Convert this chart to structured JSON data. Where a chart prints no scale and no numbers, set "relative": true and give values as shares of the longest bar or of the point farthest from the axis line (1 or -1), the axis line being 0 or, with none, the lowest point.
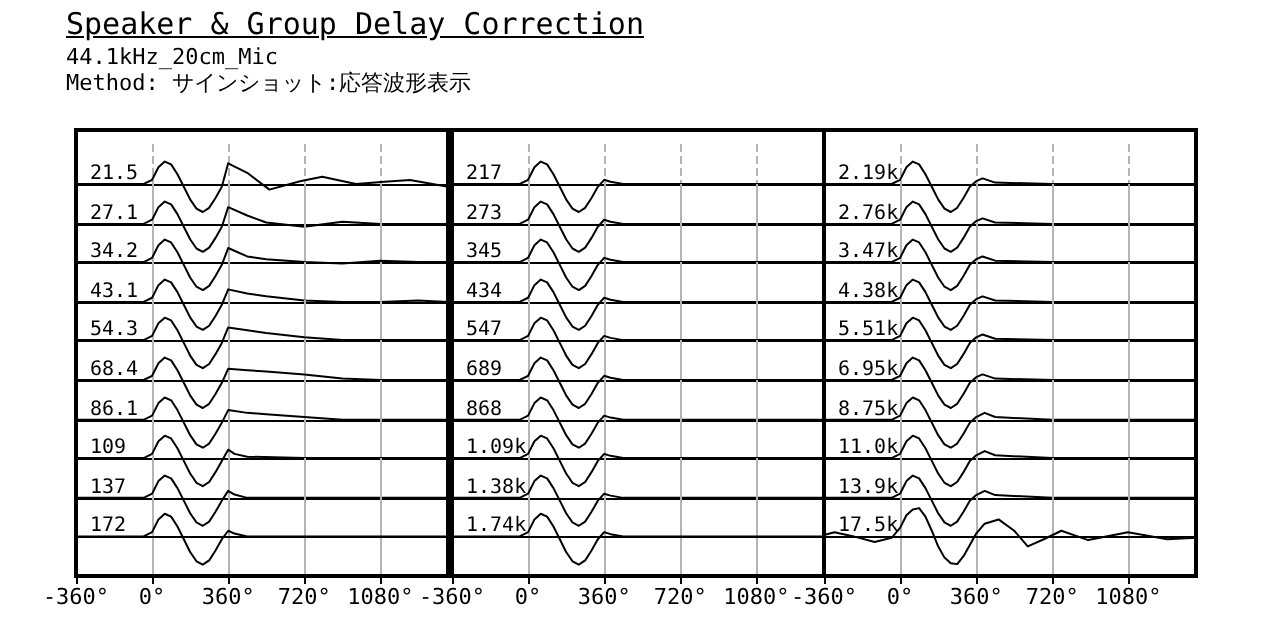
{
  "chart_data": [
    {
      "type": "other",
      "title": "Speaker & Group Delay Correction",
      "subtitle": "44.1kHz_20cm_Mic",
      "annotations": [
        "Method: サインショット:応答波形表示"
      ]
    },
    {
      "type": "line",
      "title": "21.5",
      "x": [
        -360,
        -40,
        0,
        30,
        60,
        90,
        120,
        150,
        180,
        210,
        240,
        270,
        300,
        330,
        360,
        450,
        555,
        700,
        805,
        965,
        1100,
        1220,
        1400
      ],
      "values": [
        0,
        0,
        0.15,
        0.6,
        0.8,
        0.7,
        0.35,
        -0.1,
        -0.55,
        -0.88,
        -1,
        -0.85,
        -0.5,
        -0.1,
        0.74,
        0.4,
        -0.2,
        0.1,
        0.26,
        0,
        0.08,
        0.14,
        -0.1
      ],
      "relative": true,
      "xlim": [
        -360,
        1400
      ],
      "xticks": [
        {
          "value": -360,
          "label": null
        },
        {
          "value": 0,
          "label": null
        },
        {
          "value": 360,
          "label": null
        },
        {
          "value": 720,
          "label": null
        },
        {
          "value": 1080,
          "label": null
        }
      ],
      "grid": "x",
      "tick_labels": false,
      "color": "#000000"
    },
    {
      "type": "line",
      "title": "27.1",
      "x": [
        -360,
        -40,
        0,
        30,
        60,
        90,
        120,
        150,
        180,
        210,
        240,
        270,
        300,
        330,
        360,
        450,
        540,
        720,
        900,
        1080,
        1260,
        1400
      ],
      "values": [
        0,
        0,
        0.15,
        0.6,
        0.8,
        0.7,
        0.35,
        -0.1,
        -0.55,
        -0.88,
        -1,
        -0.85,
        -0.5,
        -0.1,
        0.6,
        0.3,
        0.05,
        -0.1,
        0.08,
        0,
        0,
        0
      ],
      "relative": true,
      "xlim": [
        -360,
        1400
      ],
      "xticks": [
        {
          "value": -360,
          "label": null
        },
        {
          "value": 0,
          "label": null
        },
        {
          "value": 360,
          "label": null
        },
        {
          "value": 720,
          "label": null
        },
        {
          "value": 1080,
          "label": null
        }
      ],
      "grid": "x",
      "tick_labels": false,
      "color": "#000000"
    },
    {
      "type": "line",
      "title": "34.2",
      "x": [
        -360,
        -40,
        0,
        30,
        60,
        90,
        120,
        150,
        180,
        210,
        240,
        270,
        300,
        330,
        360,
        450,
        540,
        720,
        900,
        1080,
        1260,
        1400
      ],
      "values": [
        0,
        0,
        0.15,
        0.6,
        0.8,
        0.7,
        0.35,
        -0.1,
        -0.55,
        -0.88,
        -1,
        -0.85,
        -0.5,
        -0.1,
        0.5,
        0.2,
        0.1,
        0,
        -0.05,
        0.05,
        0,
        0
      ],
      "relative": true,
      "xlim": [
        -360,
        1400
      ],
      "xticks": [
        {
          "value": -360,
          "label": null
        },
        {
          "value": 0,
          "label": null
        },
        {
          "value": 360,
          "label": null
        },
        {
          "value": 720,
          "label": null
        },
        {
          "value": 1080,
          "label": null
        }
      ],
      "grid": "x",
      "tick_labels": false,
      "color": "#000000"
    },
    {
      "type": "line",
      "title": "43.1",
      "x": [
        -360,
        -40,
        0,
        30,
        60,
        90,
        120,
        150,
        180,
        210,
        240,
        270,
        300,
        330,
        360,
        450,
        540,
        720,
        900,
        1080,
        1260,
        1400
      ],
      "values": [
        0,
        0,
        0.15,
        0.6,
        0.8,
        0.7,
        0.35,
        -0.1,
        -0.55,
        -0.88,
        -1,
        -0.85,
        -0.5,
        -0.1,
        0.45,
        0.3,
        0.2,
        0.05,
        0,
        0,
        0.05,
        0
      ],
      "relative": true,
      "xlim": [
        -360,
        1400
      ],
      "xticks": [
        {
          "value": -360,
          "label": null
        },
        {
          "value": 0,
          "label": null
        },
        {
          "value": 360,
          "label": null
        },
        {
          "value": 720,
          "label": null
        },
        {
          "value": 1080,
          "label": null
        }
      ],
      "grid": "x",
      "tick_labels": false,
      "color": "#000000"
    },
    {
      "type": "line",
      "title": "54.3",
      "x": [
        -360,
        -40,
        0,
        30,
        60,
        90,
        120,
        150,
        180,
        210,
        240,
        270,
        300,
        330,
        360,
        450,
        540,
        720,
        900,
        1080,
        1260,
        1400
      ],
      "values": [
        0,
        0,
        0.15,
        0.6,
        0.8,
        0.7,
        0.35,
        -0.1,
        -0.55,
        -0.88,
        -1,
        -0.85,
        -0.5,
        -0.1,
        0.45,
        0.35,
        0.25,
        0.1,
        0,
        0,
        0,
        0
      ],
      "relative": true,
      "xlim": [
        -360,
        1400
      ],
      "xticks": [
        {
          "value": -360,
          "label": null
        },
        {
          "value": 0,
          "label": null
        },
        {
          "value": 360,
          "label": null
        },
        {
          "value": 720,
          "label": null
        },
        {
          "value": 1080,
          "label": null
        }
      ],
      "grid": "x",
      "tick_labels": false,
      "color": "#000000"
    },
    {
      "type": "line",
      "title": "68.4",
      "x": [
        -360,
        -40,
        0,
        30,
        60,
        90,
        120,
        150,
        180,
        210,
        240,
        270,
        300,
        330,
        360,
        450,
        540,
        720,
        900,
        1080,
        1260,
        1400
      ],
      "values": [
        0,
        0,
        0.15,
        0.6,
        0.8,
        0.7,
        0.35,
        -0.1,
        -0.55,
        -0.88,
        -1,
        -0.85,
        -0.5,
        -0.1,
        0.4,
        0.35,
        0.3,
        0.2,
        0.05,
        0,
        0,
        0
      ],
      "relative": true,
      "xlim": [
        -360,
        1400
      ],
      "xticks": [
        {
          "value": -360,
          "label": null
        },
        {
          "value": 0,
          "label": null
        },
        {
          "value": 360,
          "label": null
        },
        {
          "value": 720,
          "label": null
        },
        {
          "value": 1080,
          "label": null
        }
      ],
      "grid": "x",
      "tick_labels": false,
      "color": "#000000"
    },
    {
      "type": "line",
      "title": "86.1",
      "x": [
        -360,
        -40,
        0,
        30,
        60,
        90,
        120,
        150,
        180,
        210,
        240,
        270,
        300,
        330,
        360,
        450,
        540,
        720,
        900,
        1080,
        1260,
        1400
      ],
      "values": [
        0,
        0,
        0.15,
        0.6,
        0.8,
        0.7,
        0.35,
        -0.1,
        -0.55,
        -0.88,
        -1,
        -0.85,
        -0.5,
        -0.1,
        0.35,
        0.25,
        0.2,
        0.1,
        0,
        0,
        0,
        0
      ],
      "relative": true,
      "xlim": [
        -360,
        1400
      ],
      "xticks": [
        {
          "value": -360,
          "label": null
        },
        {
          "value": 0,
          "label": null
        },
        {
          "value": 360,
          "label": null
        },
        {
          "value": 720,
          "label": null
        },
        {
          "value": 1080,
          "label": null
        }
      ],
      "grid": "x",
      "tick_labels": false,
      "color": "#000000"
    },
    {
      "type": "line",
      "title": "109",
      "x": [
        -360,
        -40,
        0,
        30,
        60,
        90,
        120,
        150,
        180,
        210,
        240,
        270,
        300,
        330,
        360,
        390,
        450,
        720,
        1080,
        1400
      ],
      "values": [
        0,
        0,
        0.15,
        0.6,
        0.8,
        0.7,
        0.35,
        -0.1,
        -0.55,
        -0.88,
        -1,
        -0.85,
        -0.5,
        -0.1,
        0.3,
        0.15,
        0.05,
        0,
        0,
        0
      ],
      "relative": true,
      "xlim": [
        -360,
        1400
      ],
      "xticks": [
        {
          "value": -360,
          "label": null
        },
        {
          "value": 0,
          "label": null
        },
        {
          "value": 360,
          "label": null
        },
        {
          "value": 720,
          "label": null
        },
        {
          "value": 1080,
          "label": null
        }
      ],
      "grid": "x",
      "tick_labels": false,
      "color": "#000000"
    },
    {
      "type": "line",
      "title": "137",
      "x": [
        -360,
        -40,
        0,
        30,
        60,
        90,
        120,
        150,
        180,
        210,
        240,
        270,
        300,
        330,
        360,
        390,
        450,
        720,
        1080,
        1400
      ],
      "values": [
        0,
        0,
        0.15,
        0.6,
        0.8,
        0.7,
        0.35,
        -0.1,
        -0.55,
        -0.88,
        -1,
        -0.85,
        -0.5,
        -0.1,
        0.25,
        0.12,
        0,
        0,
        0,
        0
      ],
      "relative": true,
      "xlim": [
        -360,
        1400
      ],
      "xticks": [
        {
          "value": -360,
          "label": null
        },
        {
          "value": 0,
          "label": null
        },
        {
          "value": 360,
          "label": null
        },
        {
          "value": 720,
          "label": null
        },
        {
          "value": 1080,
          "label": null
        }
      ],
      "grid": "x",
      "tick_labels": false,
      "color": "#000000"
    },
    {
      "type": "line",
      "title": "172",
      "x": [
        -360,
        -40,
        0,
        30,
        60,
        90,
        120,
        150,
        180,
        210,
        240,
        270,
        300,
        330,
        360,
        390,
        450,
        720,
        1080,
        1400
      ],
      "values": [
        0,
        0,
        0.15,
        0.6,
        0.8,
        0.7,
        0.35,
        -0.1,
        -0.55,
        -0.88,
        -1,
        -0.85,
        -0.5,
        -0.1,
        0.2,
        0.1,
        0,
        0,
        0,
        0
      ],
      "relative": true,
      "xlim": [
        -360,
        1400
      ],
      "xticks": [
        {
          "value": -360,
          "label": "-360°"
        },
        {
          "value": 0,
          "label": "0°"
        },
        {
          "value": 360,
          "label": "360°"
        },
        {
          "value": 720,
          "label": "720°"
        },
        {
          "value": 1080,
          "label": "1080°"
        }
      ],
      "grid": "x",
      "tick_labels": "x",
      "color": "#000000"
    },
    {
      "type": "line",
      "title": "217",
      "x": [
        -360,
        -40,
        0,
        30,
        60,
        90,
        120,
        150,
        180,
        210,
        240,
        270,
        300,
        330,
        360,
        390,
        450,
        720,
        1080,
        1400
      ],
      "values": [
        0,
        0,
        0.15,
        0.6,
        0.8,
        0.7,
        0.35,
        -0.1,
        -0.55,
        -0.88,
        -1,
        -0.85,
        -0.5,
        -0.1,
        0.15,
        0.08,
        0,
        0,
        0,
        0
      ],
      "relative": true,
      "xlim": [
        -360,
        1400
      ],
      "xticks": [
        {
          "value": -360,
          "label": null
        },
        {
          "value": 0,
          "label": null
        },
        {
          "value": 360,
          "label": null
        },
        {
          "value": 720,
          "label": null
        },
        {
          "value": 1080,
          "label": null
        }
      ],
      "grid": "x",
      "tick_labels": false,
      "color": "#000000"
    },
    {
      "type": "line",
      "title": "273",
      "x": [
        -360,
        -40,
        0,
        30,
        60,
        90,
        120,
        150,
        180,
        210,
        240,
        270,
        300,
        330,
        360,
        390,
        450,
        720,
        1080,
        1400
      ],
      "values": [
        0,
        0,
        0.15,
        0.6,
        0.8,
        0.7,
        0.35,
        -0.1,
        -0.55,
        -0.88,
        -1,
        -0.85,
        -0.5,
        -0.1,
        0.15,
        0.08,
        0,
        0,
        0,
        0
      ],
      "relative": true,
      "xlim": [
        -360,
        1400
      ],
      "xticks": [
        {
          "value": -360,
          "label": null
        },
        {
          "value": 0,
          "label": null
        },
        {
          "value": 360,
          "label": null
        },
        {
          "value": 720,
          "label": null
        },
        {
          "value": 1080,
          "label": null
        }
      ],
      "grid": "x",
      "tick_labels": false,
      "color": "#000000"
    },
    {
      "type": "line",
      "title": "345",
      "x": [
        -360,
        -40,
        0,
        30,
        60,
        90,
        120,
        150,
        180,
        210,
        240,
        270,
        300,
        330,
        360,
        390,
        450,
        720,
        1080,
        1400
      ],
      "values": [
        0,
        0,
        0.15,
        0.6,
        0.8,
        0.7,
        0.35,
        -0.1,
        -0.55,
        -0.88,
        -1,
        -0.85,
        -0.5,
        -0.1,
        0.15,
        0.08,
        0,
        0,
        0,
        0
      ],
      "relative": true,
      "xlim": [
        -360,
        1400
      ],
      "xticks": [
        {
          "value": -360,
          "label": null
        },
        {
          "value": 0,
          "label": null
        },
        {
          "value": 360,
          "label": null
        },
        {
          "value": 720,
          "label": null
        },
        {
          "value": 1080,
          "label": null
        }
      ],
      "grid": "x",
      "tick_labels": false,
      "color": "#000000"
    },
    {
      "type": "line",
      "title": "434",
      "x": [
        -360,
        -40,
        0,
        30,
        60,
        90,
        120,
        150,
        180,
        210,
        240,
        270,
        300,
        330,
        360,
        390,
        450,
        720,
        1080,
        1400
      ],
      "values": [
        0,
        0,
        0.15,
        0.6,
        0.8,
        0.7,
        0.35,
        -0.1,
        -0.55,
        -0.88,
        -1,
        -0.85,
        -0.5,
        -0.1,
        0.15,
        0.08,
        0,
        0,
        0,
        0
      ],
      "relative": true,
      "xlim": [
        -360,
        1400
      ],
      "xticks": [
        {
          "value": -360,
          "label": null
        },
        {
          "value": 0,
          "label": null
        },
        {
          "value": 360,
          "label": null
        },
        {
          "value": 720,
          "label": null
        },
        {
          "value": 1080,
          "label": null
        }
      ],
      "grid": "x",
      "tick_labels": false,
      "color": "#000000"
    },
    {
      "type": "line",
      "title": "547",
      "x": [
        -360,
        -40,
        0,
        30,
        60,
        90,
        120,
        150,
        180,
        210,
        240,
        270,
        300,
        330,
        360,
        390,
        450,
        720,
        1080,
        1400
      ],
      "values": [
        0,
        0,
        0.15,
        0.6,
        0.8,
        0.7,
        0.35,
        -0.1,
        -0.55,
        -0.88,
        -1,
        -0.85,
        -0.5,
        -0.1,
        0.15,
        0.08,
        0,
        0,
        0,
        0
      ],
      "relative": true,
      "xlim": [
        -360,
        1400
      ],
      "xticks": [
        {
          "value": -360,
          "label": null
        },
        {
          "value": 0,
          "label": null
        },
        {
          "value": 360,
          "label": null
        },
        {
          "value": 720,
          "label": null
        },
        {
          "value": 1080,
          "label": null
        }
      ],
      "grid": "x",
      "tick_labels": false,
      "color": "#000000"
    },
    {
      "type": "line",
      "title": "689",
      "x": [
        -360,
        -40,
        0,
        30,
        60,
        90,
        120,
        150,
        180,
        210,
        240,
        270,
        300,
        330,
        360,
        390,
        450,
        720,
        1080,
        1400
      ],
      "values": [
        0,
        0,
        0.15,
        0.6,
        0.8,
        0.7,
        0.35,
        -0.1,
        -0.55,
        -0.88,
        -1,
        -0.85,
        -0.5,
        -0.1,
        0.15,
        0.08,
        0,
        0,
        0,
        0
      ],
      "relative": true,
      "xlim": [
        -360,
        1400
      ],
      "xticks": [
        {
          "value": -360,
          "label": null
        },
        {
          "value": 0,
          "label": null
        },
        {
          "value": 360,
          "label": null
        },
        {
          "value": 720,
          "label": null
        },
        {
          "value": 1080,
          "label": null
        }
      ],
      "grid": "x",
      "tick_labels": false,
      "color": "#000000"
    },
    {
      "type": "line",
      "title": "868",
      "x": [
        -360,
        -40,
        0,
        30,
        60,
        90,
        120,
        150,
        180,
        210,
        240,
        270,
        300,
        330,
        360,
        390,
        450,
        720,
        1080,
        1400
      ],
      "values": [
        0,
        0,
        0.15,
        0.6,
        0.8,
        0.7,
        0.35,
        -0.1,
        -0.55,
        -0.88,
        -1,
        -0.85,
        -0.5,
        -0.1,
        0.15,
        0.08,
        0,
        0,
        0,
        0
      ],
      "relative": true,
      "xlim": [
        -360,
        1400
      ],
      "xticks": [
        {
          "value": -360,
          "label": null
        },
        {
          "value": 0,
          "label": null
        },
        {
          "value": 360,
          "label": null
        },
        {
          "value": 720,
          "label": null
        },
        {
          "value": 1080,
          "label": null
        }
      ],
      "grid": "x",
      "tick_labels": false,
      "color": "#000000"
    },
    {
      "type": "line",
      "title": "1.09k",
      "x": [
        -360,
        -40,
        0,
        30,
        60,
        90,
        120,
        150,
        180,
        210,
        240,
        270,
        300,
        330,
        360,
        390,
        450,
        720,
        1080,
        1400
      ],
      "values": [
        0,
        0,
        0.15,
        0.6,
        0.8,
        0.7,
        0.35,
        -0.1,
        -0.55,
        -0.88,
        -1,
        -0.85,
        -0.5,
        -0.1,
        0.15,
        0.08,
        0,
        0,
        0,
        0
      ],
      "relative": true,
      "xlim": [
        -360,
        1400
      ],
      "xticks": [
        {
          "value": -360,
          "label": null
        },
        {
          "value": 0,
          "label": null
        },
        {
          "value": 360,
          "label": null
        },
        {
          "value": 720,
          "label": null
        },
        {
          "value": 1080,
          "label": null
        }
      ],
      "grid": "x",
      "tick_labels": false,
      "color": "#000000"
    },
    {
      "type": "line",
      "title": "1.38k",
      "x": [
        -360,
        -40,
        0,
        30,
        60,
        90,
        120,
        150,
        180,
        210,
        240,
        270,
        300,
        330,
        360,
        390,
        450,
        720,
        1080,
        1400
      ],
      "values": [
        0,
        0,
        0.15,
        0.6,
        0.8,
        0.7,
        0.35,
        -0.1,
        -0.55,
        -0.88,
        -1,
        -0.85,
        -0.5,
        -0.1,
        0.15,
        0.08,
        0,
        0,
        0,
        0
      ],
      "relative": true,
      "xlim": [
        -360,
        1400
      ],
      "xticks": [
        {
          "value": -360,
          "label": null
        },
        {
          "value": 0,
          "label": null
        },
        {
          "value": 360,
          "label": null
        },
        {
          "value": 720,
          "label": null
        },
        {
          "value": 1080,
          "label": null
        }
      ],
      "grid": "x",
      "tick_labels": false,
      "color": "#000000"
    },
    {
      "type": "line",
      "title": "1.74k",
      "x": [
        -360,
        -40,
        0,
        30,
        60,
        90,
        120,
        150,
        180,
        210,
        240,
        270,
        300,
        330,
        360,
        390,
        450,
        720,
        1080,
        1400
      ],
      "values": [
        0,
        0,
        0.15,
        0.6,
        0.8,
        0.7,
        0.35,
        -0.1,
        -0.55,
        -0.88,
        -1,
        -0.85,
        -0.5,
        -0.1,
        0.15,
        0.08,
        0,
        0,
        0,
        0
      ],
      "relative": true,
      "xlim": [
        -360,
        1400
      ],
      "xticks": [
        {
          "value": -360,
          "label": "-360°"
        },
        {
          "value": 0,
          "label": "0°"
        },
        {
          "value": 360,
          "label": "360°"
        },
        {
          "value": 720,
          "label": "720°"
        },
        {
          "value": 1080,
          "label": "1080°"
        }
      ],
      "grid": "x",
      "tick_labels": "x",
      "color": "#000000"
    },
    {
      "type": "line",
      "title": "2.19k",
      "x": [
        -360,
        -40,
        0,
        30,
        60,
        90,
        120,
        150,
        180,
        210,
        240,
        270,
        300,
        330,
        360,
        390,
        450,
        720,
        1080,
        1400
      ],
      "values": [
        0,
        0,
        0.15,
        0.6,
        0.8,
        0.7,
        0.35,
        -0.1,
        -0.55,
        -0.88,
        -1,
        -0.85,
        -0.5,
        -0.1,
        0.1,
        0.2,
        0.05,
        0,
        0,
        0
      ],
      "relative": true,
      "xlim": [
        -360,
        1400
      ],
      "xticks": [
        {
          "value": -360,
          "label": null
        },
        {
          "value": 0,
          "label": null
        },
        {
          "value": 360,
          "label": null
        },
        {
          "value": 720,
          "label": null
        },
        {
          "value": 1080,
          "label": null
        }
      ],
      "grid": "x",
      "tick_labels": false,
      "color": "#000000"
    },
    {
      "type": "line",
      "title": "2.76k",
      "x": [
        -360,
        -40,
        0,
        30,
        60,
        90,
        120,
        150,
        180,
        210,
        240,
        270,
        300,
        330,
        360,
        390,
        450,
        720,
        1080,
        1400
      ],
      "values": [
        0,
        0,
        0.15,
        0.6,
        0.8,
        0.7,
        0.35,
        -0.1,
        -0.55,
        -0.88,
        -1,
        -0.85,
        -0.5,
        -0.1,
        0.1,
        0.2,
        0.05,
        0,
        0,
        0
      ],
      "relative": true,
      "xlim": [
        -360,
        1400
      ],
      "xticks": [
        {
          "value": -360,
          "label": null
        },
        {
          "value": 0,
          "label": null
        },
        {
          "value": 360,
          "label": null
        },
        {
          "value": 720,
          "label": null
        },
        {
          "value": 1080,
          "label": null
        }
      ],
      "grid": "x",
      "tick_labels": false,
      "color": "#000000"
    },
    {
      "type": "line",
      "title": "3.47k",
      "x": [
        -360,
        -40,
        0,
        30,
        60,
        90,
        120,
        150,
        180,
        210,
        240,
        270,
        300,
        330,
        360,
        390,
        450,
        720,
        1080,
        1400
      ],
      "values": [
        0,
        0,
        0.15,
        0.6,
        0.8,
        0.7,
        0.35,
        -0.1,
        -0.55,
        -0.88,
        -1,
        -0.85,
        -0.5,
        -0.1,
        0.1,
        0.2,
        0.05,
        0,
        0,
        0
      ],
      "relative": true,
      "xlim": [
        -360,
        1400
      ],
      "xticks": [
        {
          "value": -360,
          "label": null
        },
        {
          "value": 0,
          "label": null
        },
        {
          "value": 360,
          "label": null
        },
        {
          "value": 720,
          "label": null
        },
        {
          "value": 1080,
          "label": null
        }
      ],
      "grid": "x",
      "tick_labels": false,
      "color": "#000000"
    },
    {
      "type": "line",
      "title": "4.38k",
      "x": [
        -360,
        -40,
        0,
        30,
        60,
        90,
        120,
        150,
        180,
        210,
        240,
        270,
        300,
        330,
        360,
        390,
        450,
        720,
        1080,
        1400
      ],
      "values": [
        0,
        0,
        0.15,
        0.6,
        0.8,
        0.7,
        0.35,
        -0.1,
        -0.55,
        -0.88,
        -1,
        -0.85,
        -0.5,
        -0.1,
        0.1,
        0.2,
        0.05,
        0,
        0,
        0
      ],
      "relative": true,
      "xlim": [
        -360,
        1400
      ],
      "xticks": [
        {
          "value": -360,
          "label": null
        },
        {
          "value": 0,
          "label": null
        },
        {
          "value": 360,
          "label": null
        },
        {
          "value": 720,
          "label": null
        },
        {
          "value": 1080,
          "label": null
        }
      ],
      "grid": "x",
      "tick_labels": false,
      "color": "#000000"
    },
    {
      "type": "line",
      "title": "5.51k",
      "x": [
        -360,
        -40,
        0,
        30,
        60,
        90,
        120,
        150,
        180,
        210,
        240,
        270,
        300,
        330,
        360,
        390,
        450,
        720,
        1080,
        1400
      ],
      "values": [
        0,
        0,
        0.15,
        0.6,
        0.8,
        0.7,
        0.35,
        -0.1,
        -0.55,
        -0.88,
        -1,
        -0.85,
        -0.5,
        -0.1,
        0.1,
        0.2,
        0.05,
        0,
        0,
        0
      ],
      "relative": true,
      "xlim": [
        -360,
        1400
      ],
      "xticks": [
        {
          "value": -360,
          "label": null
        },
        {
          "value": 0,
          "label": null
        },
        {
          "value": 360,
          "label": null
        },
        {
          "value": 720,
          "label": null
        },
        {
          "value": 1080,
          "label": null
        }
      ],
      "grid": "x",
      "tick_labels": false,
      "color": "#000000"
    },
    {
      "type": "line",
      "title": "6.95k",
      "x": [
        -360,
        -40,
        0,
        30,
        60,
        90,
        120,
        150,
        180,
        210,
        240,
        270,
        300,
        330,
        360,
        390,
        450,
        720,
        1080,
        1400
      ],
      "values": [
        0,
        0,
        0.15,
        0.6,
        0.8,
        0.7,
        0.35,
        -0.1,
        -0.55,
        -0.88,
        -1,
        -0.85,
        -0.5,
        -0.1,
        0.1,
        0.2,
        0.05,
        0,
        0,
        0
      ],
      "relative": true,
      "xlim": [
        -360,
        1400
      ],
      "xticks": [
        {
          "value": -360,
          "label": null
        },
        {
          "value": 0,
          "label": null
        },
        {
          "value": 360,
          "label": null
        },
        {
          "value": 720,
          "label": null
        },
        {
          "value": 1080,
          "label": null
        }
      ],
      "grid": "x",
      "tick_labels": false,
      "color": "#000000"
    },
    {
      "type": "line",
      "title": "8.75k",
      "x": [
        -360,
        -40,
        0,
        30,
        60,
        90,
        120,
        150,
        180,
        210,
        240,
        270,
        300,
        330,
        360,
        400,
        450,
        720,
        1080,
        1400
      ],
      "values": [
        0,
        0,
        0.15,
        0.6,
        0.8,
        0.7,
        0.35,
        -0.1,
        -0.55,
        -0.88,
        -1,
        -0.85,
        -0.5,
        -0.1,
        0.1,
        0.25,
        0.1,
        0,
        0,
        0
      ],
      "relative": true,
      "xlim": [
        -360,
        1400
      ],
      "xticks": [
        {
          "value": -360,
          "label": null
        },
        {
          "value": 0,
          "label": null
        },
        {
          "value": 360,
          "label": null
        },
        {
          "value": 720,
          "label": null
        },
        {
          "value": 1080,
          "label": null
        }
      ],
      "grid": "x",
      "tick_labels": false,
      "color": "#000000"
    },
    {
      "type": "line",
      "title": "11.0k",
      "x": [
        -360,
        -40,
        0,
        30,
        60,
        90,
        120,
        150,
        180,
        210,
        240,
        270,
        300,
        330,
        360,
        400,
        450,
        720,
        1080,
        1400
      ],
      "values": [
        0,
        0,
        0.15,
        0.6,
        0.8,
        0.7,
        0.35,
        -0.1,
        -0.55,
        -0.88,
        -1,
        -0.85,
        -0.5,
        -0.1,
        0.1,
        0.25,
        0.1,
        0,
        0,
        0
      ],
      "relative": true,
      "xlim": [
        -360,
        1400
      ],
      "xticks": [
        {
          "value": -360,
          "label": null
        },
        {
          "value": 0,
          "label": null
        },
        {
          "value": 360,
          "label": null
        },
        {
          "value": 720,
          "label": null
        },
        {
          "value": 1080,
          "label": null
        }
      ],
      "grid": "x",
      "tick_labels": false,
      "color": "#000000"
    },
    {
      "type": "line",
      "title": "13.9k",
      "x": [
        -360,
        -40,
        0,
        30,
        60,
        90,
        120,
        150,
        180,
        210,
        240,
        270,
        300,
        330,
        360,
        400,
        450,
        720,
        1080,
        1400
      ],
      "values": [
        0,
        0,
        0.15,
        0.6,
        0.8,
        0.7,
        0.35,
        -0.1,
        -0.55,
        -0.88,
        -1,
        -0.85,
        -0.5,
        -0.1,
        0.1,
        0.25,
        0.1,
        0,
        0,
        0
      ],
      "relative": true,
      "xlim": [
        -360,
        1400
      ],
      "xticks": [
        {
          "value": -360,
          "label": null
        },
        {
          "value": 0,
          "label": null
        },
        {
          "value": 360,
          "label": null
        },
        {
          "value": 720,
          "label": null
        },
        {
          "value": 1080,
          "label": null
        }
      ],
      "grid": "x",
      "tick_labels": false,
      "color": "#000000"
    },
    {
      "type": "line",
      "title": "17.5k",
      "x": [
        -360,
        -310,
        -220,
        -120,
        -40,
        0,
        30,
        60,
        90,
        120,
        150,
        180,
        210,
        240,
        270,
        300,
        330,
        360,
        400,
        466,
        540,
        604,
        680,
        763,
        890,
        1078,
        1265,
        1400
      ],
      "values": [
        0.05,
        0.15,
        0,
        -0.2,
        -0.05,
        0.3,
        0.75,
        0.95,
        1,
        0.7,
        0.2,
        -0.35,
        -0.75,
        -0.95,
        -0.98,
        -0.7,
        -0.3,
        0.1,
        0.45,
        0.6,
        0.2,
        -0.35,
        -0.1,
        0.2,
        -0.13,
        0.15,
        -0.1,
        -0.05
      ],
      "relative": true,
      "xlim": [
        -360,
        1400
      ],
      "xticks": [
        {
          "value": -360,
          "label": "-360°"
        },
        {
          "value": 0,
          "label": "0°"
        },
        {
          "value": 360,
          "label": "360°"
        },
        {
          "value": 720,
          "label": "720°"
        },
        {
          "value": 1080,
          "label": "1080°"
        }
      ],
      "grid": "x",
      "tick_labels": "x",
      "color": "#000000"
    }
  ]
}
